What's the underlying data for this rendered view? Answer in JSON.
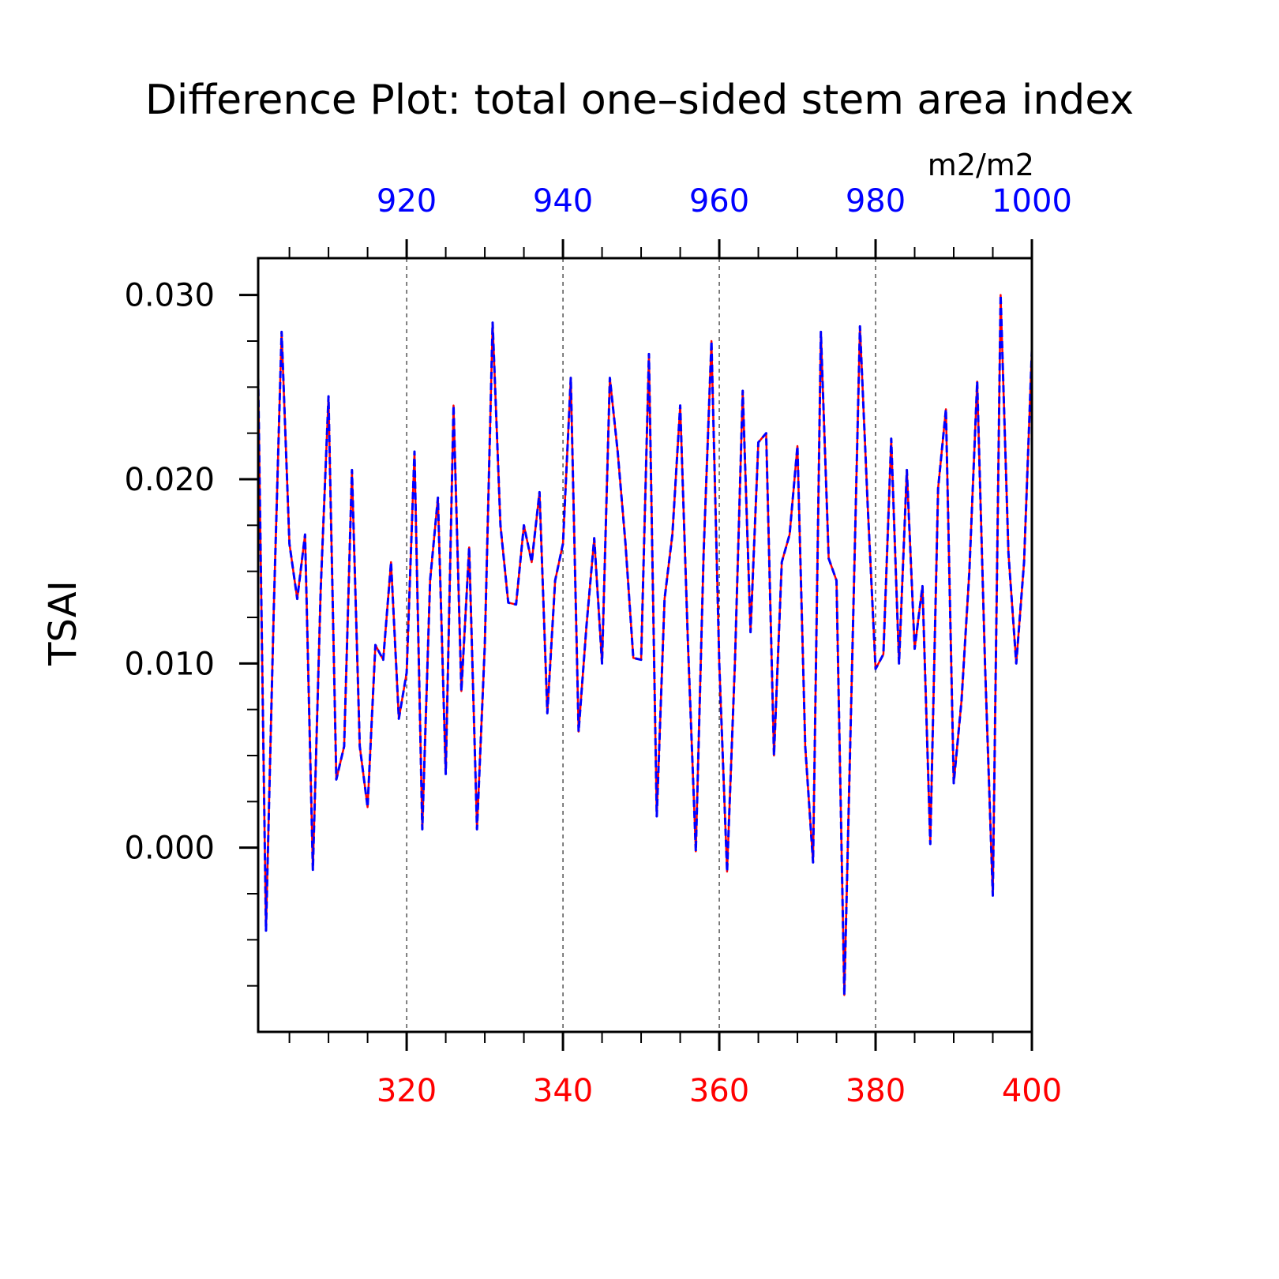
{
  "chart_data": {
    "type": "line",
    "title": "Difference Plot: total one–sided stem area index",
    "units": "m2/m2",
    "ylabel": "TSAI",
    "ylim": [
      -0.01,
      0.032
    ],
    "yticks": [
      0.0,
      0.01,
      0.02,
      0.03
    ],
    "ytick_labels": [
      "0.000",
      "0.010",
      "0.020",
      "0.030"
    ],
    "x_bottom": {
      "range": [
        301,
        400
      ],
      "ticks": [
        320,
        340,
        360,
        380,
        400
      ],
      "tick_labels": [
        "320",
        "340",
        "360",
        "380",
        "400"
      ],
      "color": "#ff0000"
    },
    "x_top": {
      "range": [
        901,
        1000
      ],
      "ticks": [
        920,
        940,
        960,
        980,
        1000
      ],
      "tick_labels": [
        "920",
        "940",
        "960",
        "980",
        "1000"
      ],
      "color": "#0000ff"
    },
    "grid": "vertical dashed at major ticks",
    "series": [
      {
        "line": "solid",
        "color": "#ff0000",
        "x": [
          301,
          302,
          303,
          304,
          305,
          306,
          307,
          308,
          309,
          310,
          311,
          312,
          313,
          314,
          315,
          316,
          317,
          318,
          319,
          320,
          321,
          322,
          323,
          324,
          325,
          326,
          327,
          328,
          329,
          330,
          331,
          332,
          333,
          334,
          335,
          336,
          337,
          338,
          339,
          340,
          341,
          342,
          343,
          344,
          345,
          346,
          347,
          348,
          349,
          350,
          351,
          352,
          353,
          354,
          355,
          356,
          357,
          358,
          359,
          360,
          361,
          362,
          363,
          364,
          365,
          366,
          367,
          368,
          369,
          370,
          371,
          372,
          373,
          374,
          375,
          376,
          377,
          378,
          379,
          380,
          381,
          382,
          383,
          384,
          385,
          386,
          387,
          388,
          389,
          390,
          391,
          392,
          393,
          394,
          395,
          396,
          397,
          398,
          399,
          400
        ],
        "values": [
          0.0255,
          -0.0045,
          0.013,
          0.028,
          0.0165,
          0.0135,
          0.017,
          -0.0012,
          0.014,
          0.0245,
          0.0037,
          0.0055,
          0.0205,
          0.0055,
          0.0022,
          0.011,
          0.0102,
          0.0155,
          0.007,
          0.0095,
          0.0215,
          0.001,
          0.0145,
          0.019,
          0.004,
          0.024,
          0.0085,
          0.0163,
          0.001,
          0.011,
          0.0285,
          0.0175,
          0.0133,
          0.0132,
          0.0175,
          0.0155,
          0.0193,
          0.0073,
          0.0145,
          0.0165,
          0.0255,
          0.0063,
          0.012,
          0.0168,
          0.01,
          0.0255,
          0.0215,
          0.0165,
          0.0103,
          0.0102,
          0.0268,
          0.0017,
          0.0135,
          0.017,
          0.024,
          0.011,
          -0.0002,
          0.016,
          0.0275,
          0.01,
          -0.0013,
          0.01,
          0.0248,
          0.0117,
          0.022,
          0.0225,
          0.005,
          0.0155,
          0.017,
          0.0218,
          0.0055,
          -0.0008,
          0.028,
          0.0157,
          0.0145,
          -0.008,
          0.01,
          0.0283,
          0.0185,
          0.0097,
          0.0105,
          0.0222,
          0.01,
          0.0205,
          0.0108,
          0.0142,
          0.0002,
          0.0195,
          0.0238,
          0.0035,
          0.008,
          0.015,
          0.0253,
          0.01,
          -0.0026,
          0.03,
          0.016,
          0.01,
          0.0155,
          0.027
        ]
      },
      {
        "line": "dashed",
        "color": "#0000ff",
        "x": [
          901,
          902,
          903,
          904,
          905,
          906,
          907,
          908,
          909,
          910,
          911,
          912,
          913,
          914,
          915,
          916,
          917,
          918,
          919,
          920,
          921,
          922,
          923,
          924,
          925,
          926,
          927,
          928,
          929,
          930,
          931,
          932,
          933,
          934,
          935,
          936,
          937,
          938,
          939,
          940,
          941,
          942,
          943,
          944,
          945,
          946,
          947,
          948,
          949,
          950,
          951,
          952,
          953,
          954,
          955,
          956,
          957,
          958,
          959,
          960,
          961,
          962,
          963,
          964,
          965,
          966,
          967,
          968,
          969,
          970,
          971,
          972,
          973,
          974,
          975,
          976,
          977,
          978,
          979,
          980,
          981,
          982,
          983,
          984,
          985,
          986,
          987,
          988,
          989,
          990,
          991,
          992,
          993,
          994,
          995,
          996,
          997,
          998,
          999,
          1000
        ],
        "values": [
          0.0255,
          -0.0045,
          0.013,
          0.028,
          0.0165,
          0.0135,
          0.017,
          -0.0012,
          0.014,
          0.0245,
          0.0037,
          0.0055,
          0.0205,
          0.0055,
          0.0022,
          0.011,
          0.0102,
          0.0155,
          0.007,
          0.0095,
          0.0215,
          0.001,
          0.0145,
          0.019,
          0.004,
          0.024,
          0.0085,
          0.0163,
          0.001,
          0.011,
          0.0285,
          0.0175,
          0.0133,
          0.0132,
          0.0175,
          0.0155,
          0.0193,
          0.0073,
          0.0145,
          0.0165,
          0.0255,
          0.0063,
          0.012,
          0.0168,
          0.01,
          0.0255,
          0.0215,
          0.0165,
          0.0103,
          0.0102,
          0.0268,
          0.0017,
          0.0135,
          0.017,
          0.024,
          0.011,
          -0.0002,
          0.016,
          0.0275,
          0.01,
          -0.0013,
          0.01,
          0.0248,
          0.0117,
          0.022,
          0.0225,
          0.005,
          0.0155,
          0.017,
          0.0218,
          0.0055,
          -0.0008,
          0.028,
          0.0157,
          0.0145,
          -0.008,
          0.01,
          0.0283,
          0.0185,
          0.0097,
          0.0105,
          0.0222,
          0.01,
          0.0205,
          0.0108,
          0.0142,
          0.0002,
          0.0195,
          0.0238,
          0.0035,
          0.008,
          0.015,
          0.0253,
          0.01,
          -0.0026,
          0.03,
          0.016,
          0.01,
          0.0155,
          0.027
        ]
      }
    ]
  }
}
